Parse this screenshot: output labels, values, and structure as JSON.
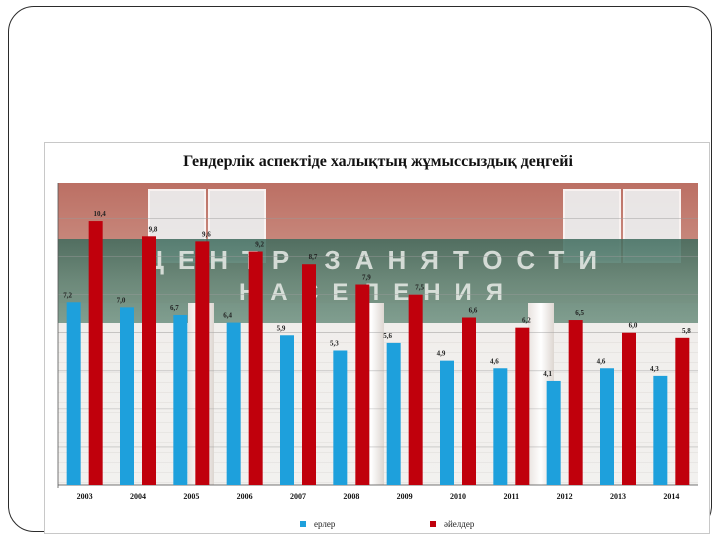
{
  "chart_data": {
    "type": "bar",
    "title": "Гендерлік аспектіде халықтың жұмыссыздық деңгейі",
    "categories": [
      "2003",
      "2004",
      "2005",
      "2006",
      "2007",
      "2008",
      "2009",
      "2010",
      "2011",
      "2012",
      "2013",
      "2014"
    ],
    "series": [
      {
        "name": "ерлер",
        "color": "#1ea0dc",
        "values": [
          7.2,
          7.0,
          6.7,
          6.4,
          5.9,
          5.3,
          5.6,
          4.9,
          4.6,
          4.1,
          4.6,
          4.3
        ],
        "labels": [
          "7,2",
          "7,0",
          "6,7",
          "6,4",
          "5,9",
          "5,3",
          "5,6",
          "4,9",
          "4,6",
          "4,1",
          "4,6",
          "4,3"
        ]
      },
      {
        "name": "әйелдер",
        "color": "#c0000c",
        "values": [
          10.4,
          9.8,
          9.6,
          9.2,
          8.7,
          7.9,
          7.5,
          6.6,
          6.2,
          6.5,
          6.0,
          5.8
        ],
        "labels": [
          "10,4",
          "9,8",
          "9,6",
          "9,2",
          "8,7",
          "7,9",
          "7,5",
          "6,6",
          "6,2",
          "6,5",
          "6,0",
          "5,8"
        ]
      }
    ],
    "ylim": [
      0,
      11.9
    ],
    "grid": true,
    "legend_position": "bottom",
    "background_photo_text": [
      "ЦЕНТР ЗАНЯТОСТИ",
      "НАСЕЛЕНИЯ"
    ]
  }
}
